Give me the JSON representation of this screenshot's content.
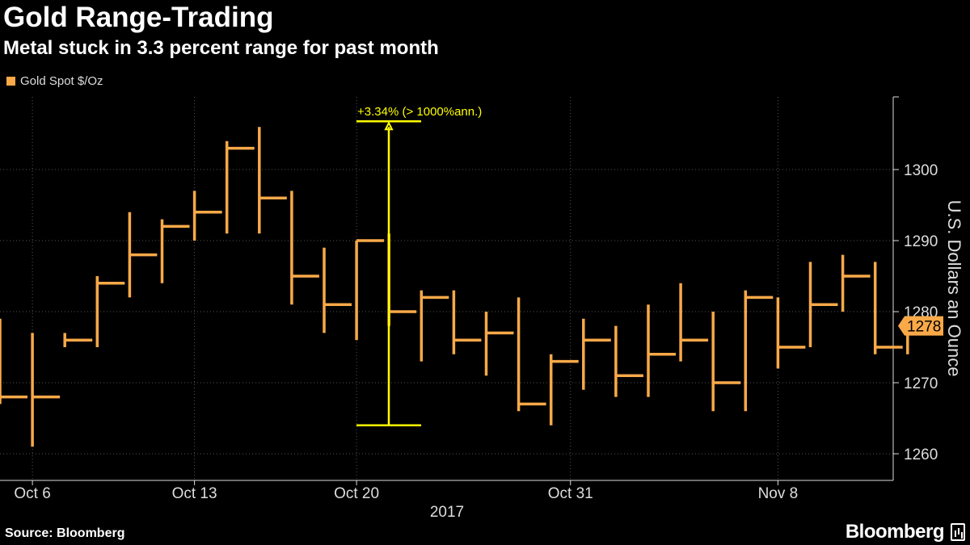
{
  "header": {
    "title": "Gold Range-Trading",
    "subtitle": "Metal stuck in 3.3 percent range for past month"
  },
  "legend": {
    "label": "Gold Spot $/Oz",
    "color": "#f9a948"
  },
  "footer": {
    "source": "Source: Bloomberg",
    "brand": "Bloomberg"
  },
  "annotation": {
    "text": "+3.34% (> 1000%ann.)",
    "color": "#ffff00"
  },
  "last_price": "1278",
  "chart_data": {
    "type": "ohlc",
    "ylabel": "U.S. Dollars an Ounce",
    "ylim": [
      1255,
      1310
    ],
    "yticks": [
      1260,
      1270,
      1280,
      1290,
      1300
    ],
    "grid": true,
    "legend_position": "top-left",
    "x_tick_labels": [
      "Oct 6",
      "Oct 13",
      "Oct 20",
      "Oct 31",
      "Nov 8"
    ],
    "year_label": "2017",
    "series": [
      {
        "name": "Gold Spot $/Oz",
        "bars": [
          {
            "open": 1278,
            "high": 1279,
            "low": 1267,
            "close": 1268
          },
          {
            "open": 1268,
            "high": 1277,
            "low": 1261,
            "close": 1268
          },
          {
            "open": 1277,
            "high": 1277,
            "low": 1275,
            "close": 1276
          },
          {
            "open": 1276,
            "high": 1285,
            "low": 1275,
            "close": 1284
          },
          {
            "open": 1284,
            "high": 1294,
            "low": 1282,
            "close": 1288
          },
          {
            "open": 1288,
            "high": 1293,
            "low": 1284,
            "close": 1292
          },
          {
            "open": 1292,
            "high": 1297,
            "low": 1290,
            "close": 1294
          },
          {
            "open": 1294,
            "high": 1304,
            "low": 1291,
            "close": 1303
          },
          {
            "open": 1303,
            "high": 1306,
            "low": 1291,
            "close": 1296
          },
          {
            "open": 1296,
            "high": 1297,
            "low": 1281,
            "close": 1285
          },
          {
            "open": 1285,
            "high": 1289,
            "low": 1277,
            "close": 1281
          },
          {
            "open": 1281,
            "high": 1290,
            "low": 1276,
            "close": 1290
          },
          {
            "open": 1290,
            "high": 1291,
            "low": 1278,
            "close": 1280
          },
          {
            "open": 1280,
            "high": 1283,
            "low": 1273,
            "close": 1282
          },
          {
            "open": 1282,
            "high": 1283,
            "low": 1274,
            "close": 1276
          },
          {
            "open": 1276,
            "high": 1280,
            "low": 1271,
            "close": 1277
          },
          {
            "open": 1277,
            "high": 1282,
            "low": 1266,
            "close": 1267
          },
          {
            "open": 1267,
            "high": 1274,
            "low": 1264,
            "close": 1273
          },
          {
            "open": 1273,
            "high": 1279,
            "low": 1269,
            "close": 1276
          },
          {
            "open": 1276,
            "high": 1278,
            "low": 1268,
            "close": 1271
          },
          {
            "open": 1271,
            "high": 1281,
            "low": 1268,
            "close": 1274
          },
          {
            "open": 1274,
            "high": 1284,
            "low": 1273,
            "close": 1276
          },
          {
            "open": 1276,
            "high": 1280,
            "low": 1266,
            "close": 1270
          },
          {
            "open": 1270,
            "high": 1283,
            "low": 1266,
            "close": 1282
          },
          {
            "open": 1282,
            "high": 1282,
            "low": 1272,
            "close": 1275
          },
          {
            "open": 1275,
            "high": 1287,
            "low": 1275,
            "close": 1281
          },
          {
            "open": 1281,
            "high": 1288,
            "low": 1280,
            "close": 1285
          },
          {
            "open": 1285,
            "high": 1287,
            "low": 1274,
            "close": 1275
          },
          {
            "open": 1275,
            "high": 1279,
            "low": 1274,
            "close": 1278
          }
        ]
      }
    ],
    "range_marker": {
      "low": 1264,
      "high": 1306
    }
  }
}
